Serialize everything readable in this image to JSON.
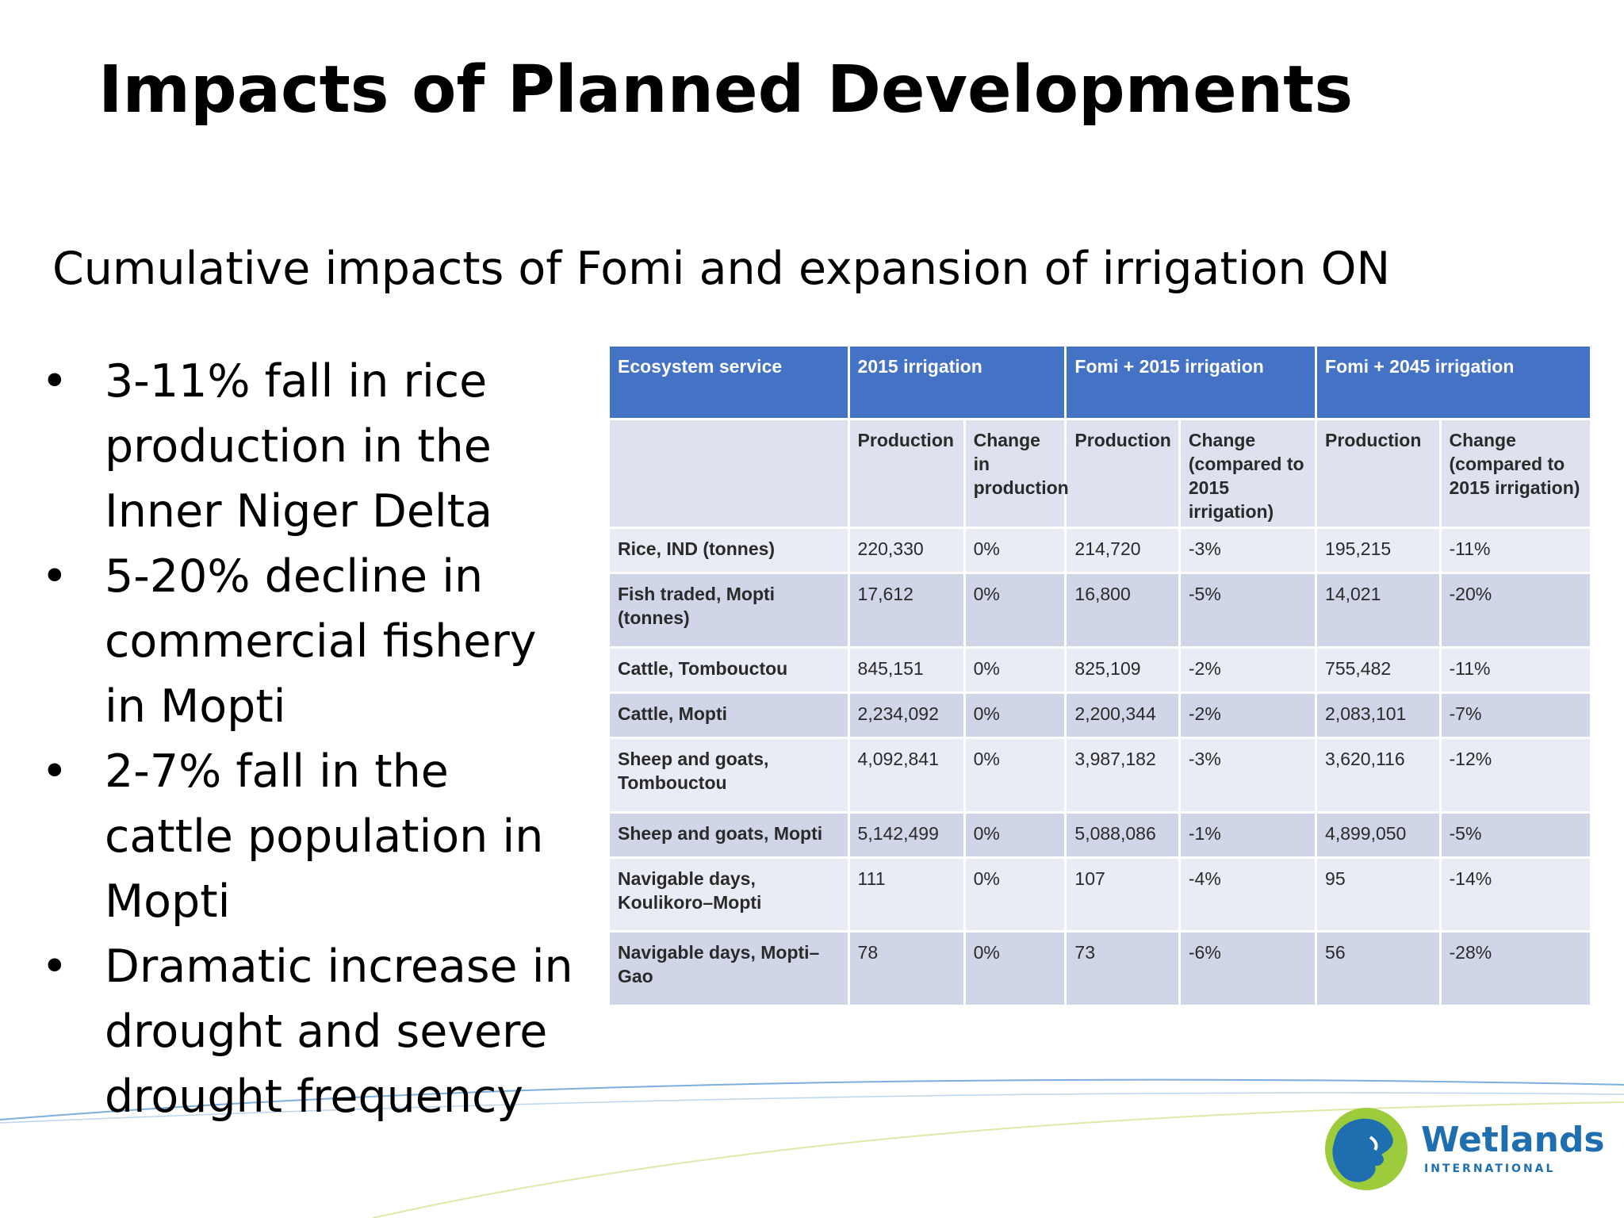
{
  "slide": {
    "title": "Impacts of Planned Developments",
    "subtitle": "Cumulative impacts of Fomi and expansion of irrigation ON",
    "bullets": [
      "3-11% fall in rice production in the Inner Niger Delta",
      "5-20% decline in commercial fishery in Mopti",
      "2-7% fall in the cattle population in Mopti",
      "Dramatic increase in drought and severe drought frequency"
    ],
    "bullet_symbol": "•"
  },
  "table": {
    "group_headers": [
      "Ecosystem service",
      "2015 irrigation",
      "Fomi + 2015 irrigation",
      "Fomi + 2045 irrigation"
    ],
    "sub_headers": [
      "",
      "Production",
      "Change in production",
      "Production",
      "Change (compared to 2015 irrigation)",
      "Production",
      "Change (compared to 2015 irrigation)"
    ],
    "rows": [
      [
        "Rice, IND (tonnes)",
        "220,330",
        "0%",
        "214,720",
        "-3%",
        "195,215",
        "-11%"
      ],
      [
        "Fish traded, Mopti (tonnes)",
        "17,612",
        "0%",
        "16,800",
        "-5%",
        "14,021",
        "-20%"
      ],
      [
        "Cattle, Tombouctou",
        "845,151",
        "0%",
        "825,109",
        "-2%",
        "755,482",
        "-11%"
      ],
      [
        "Cattle, Mopti",
        "2,234,092",
        "0%",
        "2,200,344",
        "-2%",
        "2,083,101",
        "-7%"
      ],
      [
        "Sheep and goats, Tombouctou",
        "4,092,841",
        "0%",
        "3,987,182",
        "-3%",
        "3,620,116",
        "-12%"
      ],
      [
        "Sheep and goats, Mopti",
        "5,142,499",
        "0%",
        "5,088,086",
        "-1%",
        "4,899,050",
        "-5%"
      ],
      [
        "Navigable days, Koulikoro–Mopti",
        "111",
        "0%",
        "107",
        "-4%",
        "95",
        "-14%"
      ],
      [
        "Navigable days, Mopti–Gao",
        "78",
        "0%",
        "73",
        "-6%",
        "56",
        "-28%"
      ]
    ]
  },
  "logo": {
    "name": "Wetlands",
    "tagline": "INTERNATIONAL",
    "colors": {
      "blue": "#1f6fb0",
      "green": "#9ccc3c"
    }
  },
  "theme": {
    "header_blue": "#4472c4",
    "row_light": "#e9ecf4",
    "row_dark": "#d0d6e8"
  }
}
